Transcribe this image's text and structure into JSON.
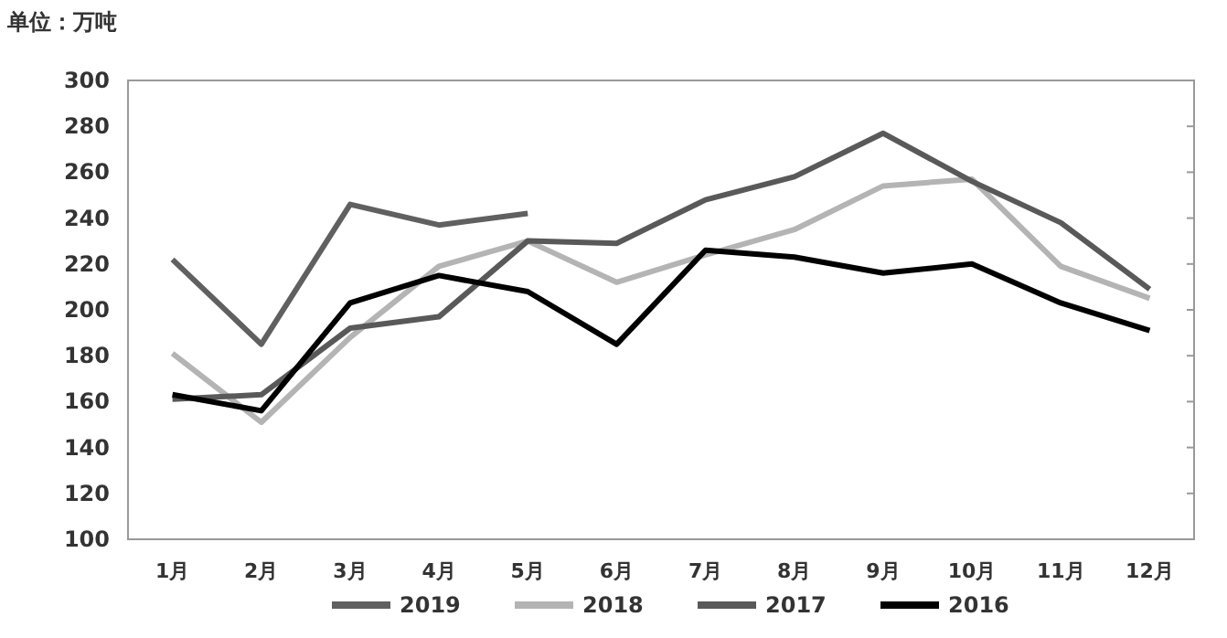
{
  "chart_data": {
    "type": "line",
    "ylabel": "单位：万吨",
    "categories": [
      "1月",
      "2月",
      "3月",
      "4月",
      "5月",
      "6月",
      "7月",
      "8月",
      "9月",
      "10月",
      "11月",
      "12月"
    ],
    "series": [
      {
        "name": "2019",
        "color": "#606060",
        "values": [
          222,
          185,
          246,
          237,
          242,
          null,
          null,
          null,
          null,
          null,
          null,
          null
        ]
      },
      {
        "name": "2018",
        "color": "#b4b4b4",
        "values": [
          181,
          151,
          188,
          219,
          230,
          212,
          224,
          235,
          254,
          257,
          219,
          205
        ]
      },
      {
        "name": "2017",
        "color": "#595959",
        "values": [
          161,
          163,
          192,
          197,
          230,
          229,
          248,
          258,
          277,
          256,
          238,
          209
        ]
      },
      {
        "name": "2016",
        "color": "#000000",
        "values": [
          163,
          156,
          203,
          215,
          208,
          185,
          226,
          223,
          216,
          220,
          203,
          191
        ]
      }
    ],
    "ylim": [
      100,
      300
    ],
    "yticks": [
      100,
      120,
      140,
      160,
      180,
      200,
      220,
      240,
      260,
      280,
      300
    ],
    "grid": false,
    "legend": "bottom",
    "marker": "none",
    "line_style": "solid"
  }
}
